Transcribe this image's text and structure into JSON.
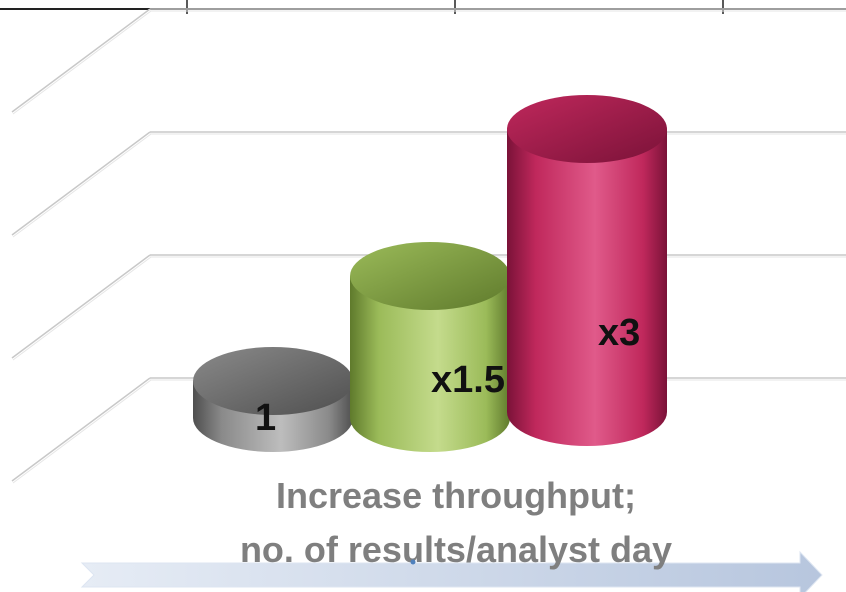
{
  "chart_data": {
    "type": "bar",
    "bar_shape": "cylinder-3d",
    "categories": [
      "",
      "",
      ""
    ],
    "values": [
      1,
      1.5,
      3
    ],
    "data_labels": [
      "1",
      "x1.5",
      "x3"
    ],
    "title": "",
    "xlabel": "",
    "ylabel": "",
    "ylim": [
      0,
      3.5
    ],
    "grid": true,
    "legend": "none",
    "caption_lines": [
      "Increase throughput;",
      "no. of results/analyst day"
    ],
    "colors": {
      "bars": [
        "#8a8a8a",
        "#9bbb59",
        "#c0285c"
      ],
      "bar_dark": [
        "#4f4f4f",
        "#5f7a2c",
        "#7a1238"
      ],
      "bar_light": [
        "#bdbdbd",
        "#c4db8c",
        "#e05a8a"
      ],
      "gridline": "#c8c8c8",
      "caption": "#7f7f7f",
      "arrow": "#c5d2e6"
    }
  }
}
